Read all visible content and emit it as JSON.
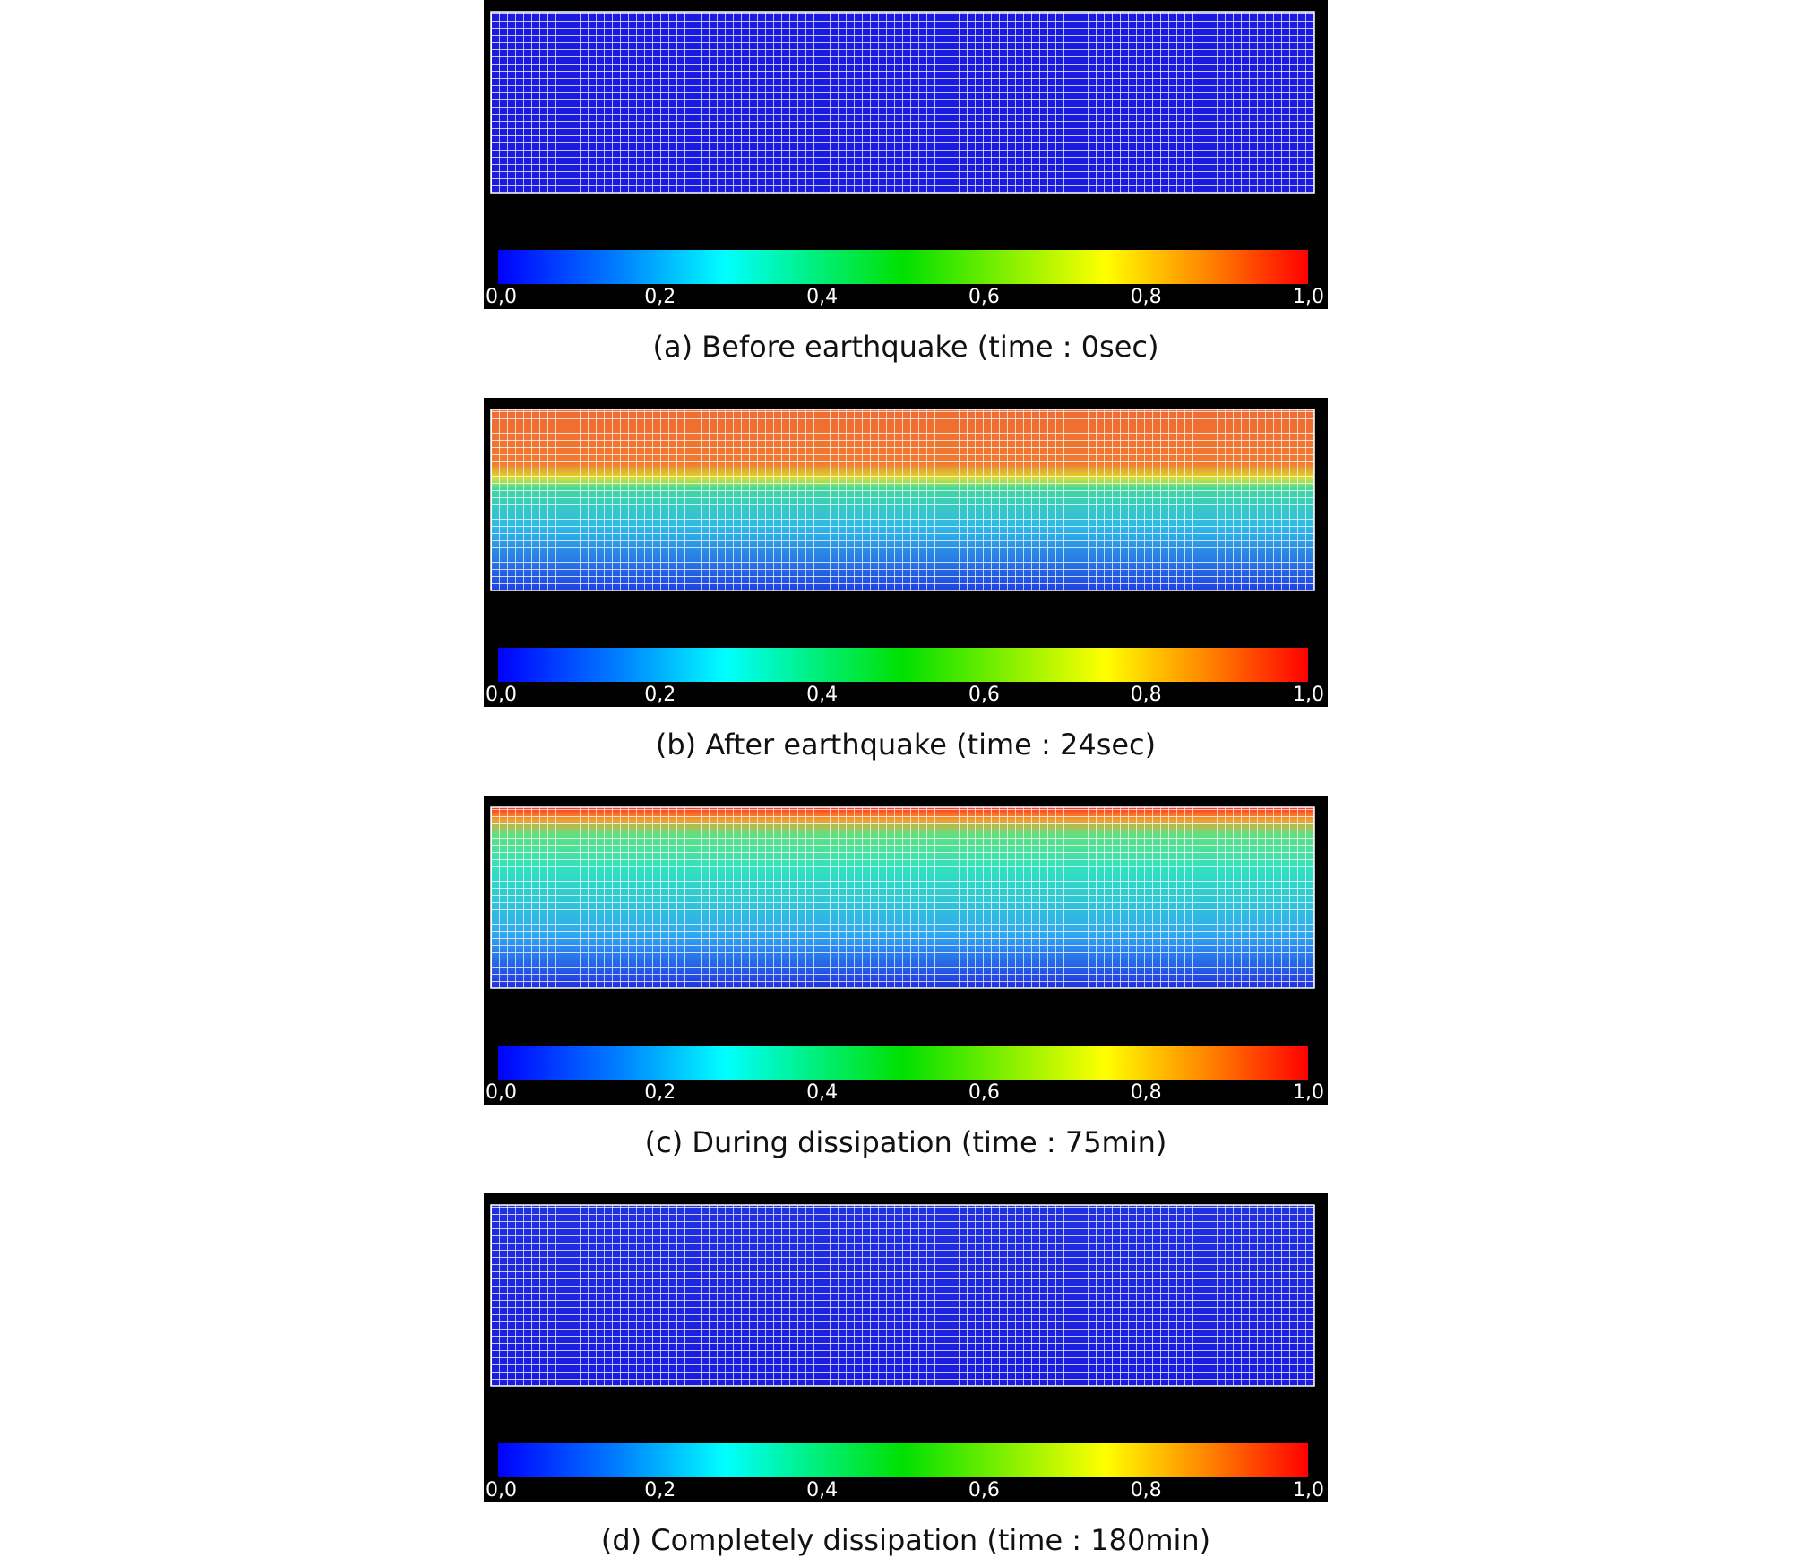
{
  "panels": [
    {
      "caption": "(a) Before earthquake (time : 0sec)"
    },
    {
      "caption": "(b) After earthquake (time : 24sec)"
    },
    {
      "caption": "(c) During dissipation (time : 75min)"
    },
    {
      "caption": "(d) Completely dissipation (time : 180min)"
    }
  ],
  "colorbar": {
    "range": [
      0,
      1
    ],
    "ticks": [
      {
        "value": 0,
        "label": "0,0"
      },
      {
        "value": 0.2,
        "label": "0,2"
      },
      {
        "value": 0.4,
        "label": "0,4"
      },
      {
        "value": 0.6,
        "label": "0,6"
      },
      {
        "value": 0.8,
        "label": "0,8"
      },
      {
        "value": 1,
        "label": "1,0"
      }
    ]
  }
}
